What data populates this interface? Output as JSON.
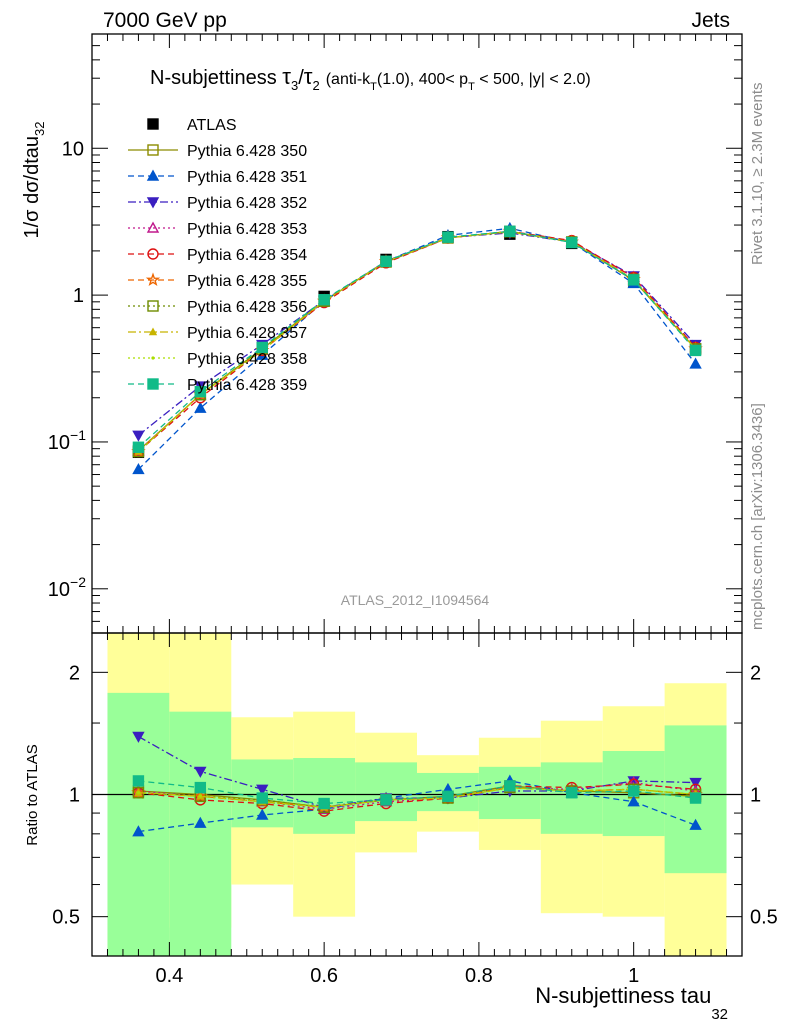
{
  "header": {
    "left": "7000 GeV pp",
    "right": "Jets"
  },
  "side_text": {
    "rivet": "Rivet 3.1.10, ≥ 2.3M events",
    "mcplots": "mcplots.cern.ch [arXiv:1306.3436]"
  },
  "watermark": "ATLAS_2012_I1094564",
  "plot_title": {
    "main": "N-subjettiness ",
    "tau": "τ",
    "sub3": "3",
    "slash": "/",
    "sub2": "2",
    "detail": "(anti-k",
    "detail_sub": "T",
    "detail2": "(1.0), 400< p",
    "detail3": " < 500, |y| < 2.0)"
  },
  "ylabel_top": {
    "main": "1/σ dσ/dtau",
    "sub": "32"
  },
  "ylabel_ratio": "Ratio to ATLAS",
  "xlabel": {
    "main": "N-subjettiness tau",
    "sub": "32"
  },
  "colors": {
    "atlas": "#000000",
    "band_inner": "#99ff99",
    "band_outer": "#ffff99"
  },
  "chart_data": [
    {
      "type": "line",
      "yscale": "log",
      "ylim": [
        0.005,
        60
      ],
      "xlim": [
        0.3,
        1.14
      ],
      "x": [
        0.36,
        0.44,
        0.52,
        0.6,
        0.68,
        0.76,
        0.84,
        0.92,
        1.0,
        1.08
      ],
      "x_edges": [
        0.32,
        0.4,
        0.48,
        0.56,
        0.64,
        0.72,
        0.8,
        0.88,
        0.96,
        1.04,
        1.12
      ],
      "y_ticks": [
        {
          "v": 0.01,
          "b": "10",
          "e": "−2"
        },
        {
          "v": 0.1,
          "b": "10",
          "e": "−1"
        },
        {
          "v": 1,
          "b": "1",
          "e": ""
        },
        {
          "v": 10,
          "b": "10",
          "e": ""
        }
      ],
      "series": [
        {
          "name": "ATLAS",
          "color": "#000000",
          "marker": "square-filled",
          "dash": "",
          "values": [
            0.085,
            0.21,
            0.44,
            0.98,
            1.75,
            2.5,
            2.6,
            2.25,
            1.25,
            0.43
          ]
        },
        {
          "name": "Pythia 6.428 350",
          "color": "#8c8c00",
          "marker": "square-open",
          "dash": "",
          "values": [
            0.087,
            0.21,
            0.43,
            0.91,
            1.68,
            2.45,
            2.72,
            2.3,
            1.26,
            0.43
          ]
        },
        {
          "name": "Pythia 6.428 351",
          "color": "#0055cc",
          "marker": "triangle-up-filled",
          "dash": "6,4",
          "values": [
            0.065,
            0.17,
            0.39,
            0.91,
            1.7,
            2.55,
            2.85,
            2.28,
            1.2,
            0.34
          ]
        },
        {
          "name": "Pythia 6.428 352",
          "color": "#3a1fc0",
          "marker": "triangle-down-filled",
          "dash": "8,3,2,3",
          "values": [
            0.111,
            0.24,
            0.46,
            0.92,
            1.7,
            2.47,
            2.65,
            2.3,
            1.35,
            0.46
          ]
        },
        {
          "name": "Pythia 6.428 353",
          "color": "#c0188c",
          "marker": "triangle-up-open",
          "dash": "2,3",
          "values": [
            0.087,
            0.21,
            0.42,
            0.9,
            1.68,
            2.45,
            2.7,
            2.32,
            1.33,
            0.44
          ]
        },
        {
          "name": "Pythia 6.428 354",
          "color": "#dd1111",
          "marker": "circle-open",
          "dash": "6,4",
          "values": [
            0.086,
            0.2,
            0.42,
            0.89,
            1.66,
            2.45,
            2.72,
            2.35,
            1.32,
            0.44
          ]
        },
        {
          "name": "Pythia 6.428 355",
          "color": "#ee6600",
          "marker": "star-open",
          "dash": "6,4",
          "values": [
            0.086,
            0.21,
            0.42,
            0.91,
            1.69,
            2.46,
            2.7,
            2.3,
            1.28,
            0.43
          ]
        },
        {
          "name": "Pythia 6.428 356",
          "color": "#6e8c00",
          "marker": "square-open",
          "dash": "2,3",
          "values": [
            0.086,
            0.21,
            0.43,
            0.91,
            1.69,
            2.46,
            2.7,
            2.3,
            1.28,
            0.43
          ]
        },
        {
          "name": "Pythia 6.428 357",
          "color": "#c8b400",
          "marker": "tri-small",
          "dash": "8,3,2,3",
          "values": [
            0.086,
            0.21,
            0.42,
            0.91,
            1.69,
            2.46,
            2.7,
            2.3,
            1.28,
            0.43
          ]
        },
        {
          "name": "Pythia 6.428 358",
          "color": "#aadd00",
          "marker": "dot",
          "dash": "2,3",
          "values": [
            0.086,
            0.21,
            0.42,
            0.91,
            1.69,
            2.46,
            2.7,
            2.3,
            1.28,
            0.43
          ]
        },
        {
          "name": "Pythia 6.428 359",
          "color": "#11bb88",
          "marker": "square-filled",
          "dash": "6,4",
          "values": [
            0.092,
            0.22,
            0.44,
            0.93,
            1.7,
            2.48,
            2.72,
            2.28,
            1.27,
            0.42
          ]
        }
      ]
    },
    {
      "type": "line",
      "yscale": "log",
      "ylim": [
        0.4,
        2.5
      ],
      "y_ticks": [
        0.5,
        1,
        2
      ],
      "x": [
        0.36,
        0.44,
        0.52,
        0.6,
        0.68,
        0.76,
        0.84,
        0.92,
        1.0,
        1.08
      ],
      "band_outer": {
        "low": [
          0.3,
          0.47,
          0.6,
          0.5,
          0.72,
          0.81,
          0.73,
          0.51,
          0.5,
          0.3
        ],
        "high": [
          2.5,
          2.5,
          1.55,
          1.6,
          1.42,
          1.25,
          1.38,
          1.52,
          1.65,
          1.88
        ]
      },
      "band_inner": {
        "low": [
          0.3,
          0.3,
          0.83,
          0.8,
          0.86,
          0.91,
          0.87,
          0.8,
          0.79,
          0.64
        ],
        "high": [
          1.78,
          1.6,
          1.22,
          1.23,
          1.2,
          1.13,
          1.17,
          1.2,
          1.28,
          1.48
        ]
      },
      "series": [
        {
          "name": "Pythia 6.428 350",
          "values": [
            1.02,
            1.0,
            0.97,
            0.93,
            0.97,
            0.99,
            1.05,
            1.02,
            1.01,
            0.99
          ]
        },
        {
          "name": "Pythia 6.428 351",
          "values": [
            0.81,
            0.85,
            0.89,
            0.92,
            0.98,
            1.03,
            1.08,
            1.01,
            0.96,
            0.84
          ]
        },
        {
          "name": "Pythia 6.428 352",
          "values": [
            1.39,
            1.14,
            1.03,
            0.93,
            0.98,
            0.98,
            1.02,
            1.02,
            1.08,
            1.07
          ]
        },
        {
          "name": "Pythia 6.428 353",
          "values": [
            1.02,
            0.99,
            0.96,
            0.92,
            0.96,
            0.98,
            1.04,
            1.03,
            1.07,
            1.02
          ]
        },
        {
          "name": "Pythia 6.428 354",
          "values": [
            1.01,
            0.97,
            0.95,
            0.91,
            0.95,
            0.98,
            1.05,
            1.04,
            1.06,
            1.03
          ]
        },
        {
          "name": "Pythia 6.428 355",
          "values": [
            1.01,
            0.99,
            0.96,
            0.93,
            0.97,
            0.98,
            1.04,
            1.02,
            1.03,
            1.0
          ]
        },
        {
          "name": "Pythia 6.428 356",
          "values": [
            1.01,
            0.99,
            0.97,
            0.93,
            0.97,
            0.98,
            1.04,
            1.02,
            1.03,
            1.0
          ]
        },
        {
          "name": "Pythia 6.428 357",
          "values": [
            1.01,
            0.99,
            0.96,
            0.93,
            0.97,
            0.98,
            1.04,
            1.02,
            1.03,
            1.0
          ]
        },
        {
          "name": "Pythia 6.428 358",
          "values": [
            1.01,
            0.99,
            0.96,
            0.93,
            0.97,
            0.98,
            1.04,
            1.02,
            1.03,
            1.0
          ]
        },
        {
          "name": "Pythia 6.428 359",
          "values": [
            1.08,
            1.04,
            0.98,
            0.95,
            0.97,
            0.99,
            1.05,
            1.01,
            1.02,
            0.98
          ]
        }
      ],
      "x_ticks": [
        0.4,
        0.6,
        0.8,
        1.0
      ],
      "x_tick_labels": [
        "0.4",
        "0.6",
        "0.8",
        "1"
      ]
    }
  ]
}
